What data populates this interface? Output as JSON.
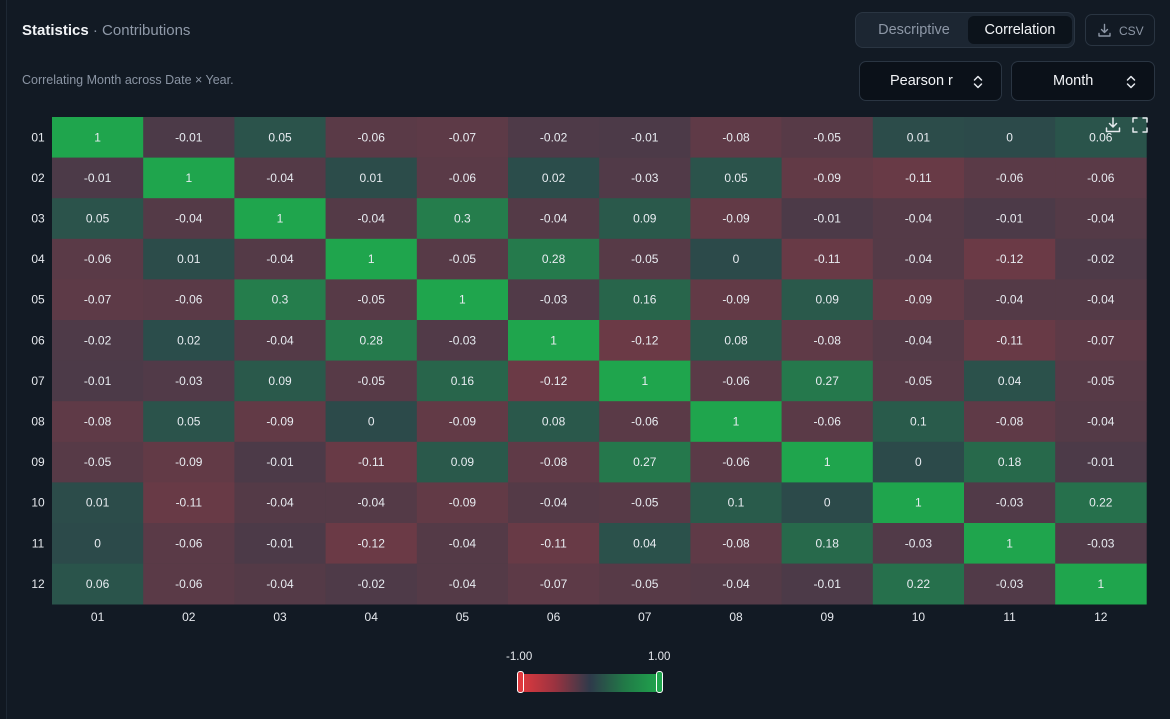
{
  "header": {
    "title": "Statistics",
    "separator": "·",
    "subtitle": "Contributions",
    "description": "Correlating Month across Date × Year."
  },
  "view_toggle": {
    "options": [
      "Descriptive",
      "Correlation"
    ],
    "selected": "Correlation"
  },
  "export": {
    "csv_label": "CSV"
  },
  "selects": {
    "method": "Pearson r",
    "field": "Month"
  },
  "icons": {
    "csv": "download-icon",
    "chart_download": "download-icon",
    "fullscreen": "fullscreen-icon",
    "select": "chevron-up-down-icon"
  },
  "colors": {
    "negative": "#e0393e",
    "neutral": "#2e3a4a",
    "positive": "#1fa54d"
  },
  "chart_data": {
    "type": "heatmap",
    "x_labels": [
      "01",
      "02",
      "03",
      "04",
      "05",
      "06",
      "07",
      "08",
      "09",
      "10",
      "11",
      "12"
    ],
    "y_labels": [
      "01",
      "02",
      "03",
      "04",
      "05",
      "06",
      "07",
      "08",
      "09",
      "10",
      "11",
      "12"
    ],
    "values": [
      [
        1,
        -0.01,
        0.05,
        -0.06,
        -0.07,
        -0.02,
        -0.01,
        -0.08,
        -0.05,
        0.01,
        0,
        0.06
      ],
      [
        -0.01,
        1,
        -0.04,
        0.01,
        -0.06,
        0.02,
        -0.03,
        0.05,
        -0.09,
        -0.11,
        -0.06,
        -0.06
      ],
      [
        0.05,
        -0.04,
        1,
        -0.04,
        0.3,
        -0.04,
        0.09,
        -0.09,
        -0.01,
        -0.04,
        -0.01,
        -0.04
      ],
      [
        -0.06,
        0.01,
        -0.04,
        1,
        -0.05,
        0.28,
        -0.05,
        0,
        -0.11,
        -0.04,
        -0.12,
        -0.02
      ],
      [
        -0.07,
        -0.06,
        0.3,
        -0.05,
        1,
        -0.03,
        0.16,
        -0.09,
        0.09,
        -0.09,
        -0.04,
        -0.04
      ],
      [
        -0.02,
        0.02,
        -0.04,
        0.28,
        -0.03,
        1,
        -0.12,
        0.08,
        -0.08,
        -0.04,
        -0.11,
        -0.07
      ],
      [
        -0.01,
        -0.03,
        0.09,
        -0.05,
        0.16,
        -0.12,
        1,
        -0.06,
        0.27,
        -0.05,
        0.04,
        -0.05
      ],
      [
        -0.08,
        0.05,
        -0.09,
        0,
        -0.09,
        0.08,
        -0.06,
        1,
        -0.06,
        0.1,
        -0.08,
        -0.04
      ],
      [
        -0.05,
        -0.09,
        -0.01,
        -0.11,
        0.09,
        -0.08,
        0.27,
        -0.06,
        1,
        0,
        0.18,
        -0.01
      ],
      [
        0.01,
        -0.11,
        -0.04,
        -0.04,
        -0.09,
        -0.04,
        -0.05,
        0.1,
        0,
        1,
        -0.03,
        0.22
      ],
      [
        0,
        -0.06,
        -0.01,
        -0.12,
        -0.04,
        -0.11,
        0.04,
        -0.08,
        0.18,
        -0.03,
        1,
        -0.03
      ],
      [
        0.06,
        -0.06,
        -0.04,
        -0.02,
        -0.04,
        -0.07,
        -0.05,
        -0.04,
        -0.01,
        0.22,
        -0.03,
        1
      ]
    ],
    "color_range": [
      -1,
      1
    ],
    "legend": {
      "min_label": "-1.00",
      "max_label": "1.00",
      "placement": "bottom-center"
    }
  }
}
